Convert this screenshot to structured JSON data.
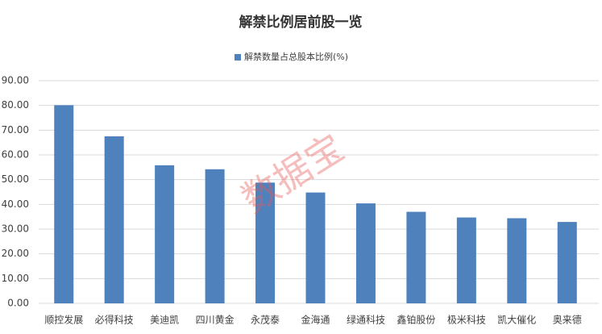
{
  "chart_data": {
    "type": "bar",
    "title": "解禁比例居前股一览",
    "watermark": "数据宝",
    "categories": [
      "顺控发展",
      "必得科技",
      "美迪凯",
      "四川黄金",
      "永茂泰",
      "金海通",
      "绿通科技",
      "鑫铂股份",
      "极米科技",
      "凯大催化",
      "奥来德"
    ],
    "series": [
      {
        "name": "解禁数量占总股本比例(%)",
        "color": "#4f81bd",
        "values": [
          80.1,
          67.5,
          55.8,
          54.2,
          48.8,
          44.8,
          40.4,
          37.0,
          34.7,
          34.4,
          32.9
        ]
      }
    ],
    "ylim": [
      0,
      90
    ],
    "yticks": [
      {
        "value": 0,
        "label": "0.00"
      },
      {
        "value": 10,
        "label": "10.00"
      },
      {
        "value": 20,
        "label": "20.00"
      },
      {
        "value": 30,
        "label": "30.00"
      },
      {
        "value": 40,
        "label": "40.00"
      },
      {
        "value": 50,
        "label": "50.00"
      },
      {
        "value": 60,
        "label": "60.00"
      },
      {
        "value": 70,
        "label": "70.00"
      },
      {
        "value": 80,
        "label": "80.00"
      },
      {
        "value": 90,
        "label": "90.00"
      }
    ],
    "grid": true,
    "legend": "top"
  }
}
